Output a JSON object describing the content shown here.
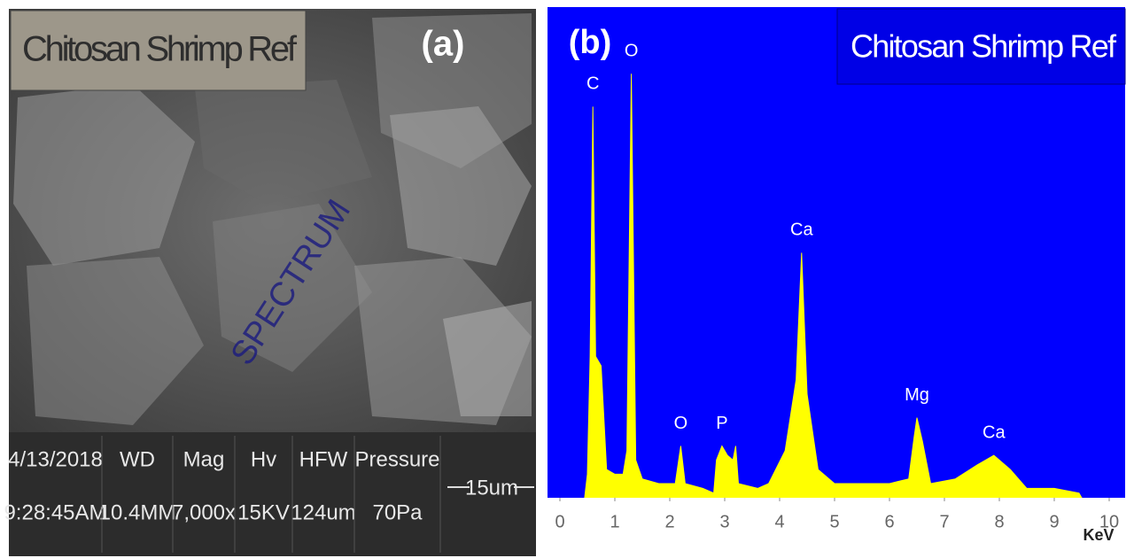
{
  "panel_a": {
    "label": "(a)",
    "title": "Chitosan Shrimp Ref",
    "watermark": "SPECTRUM",
    "info": [
      [
        "4/13/2018",
        "9:28:45AM"
      ],
      [
        "WD",
        "10.4MM"
      ],
      [
        "Mag",
        "7,000x"
      ],
      [
        "Hv",
        "15KV"
      ],
      [
        "HFW",
        "124um"
      ],
      [
        "Pressure",
        "70Pa"
      ]
    ],
    "scale_bar": "15um"
  },
  "chart_data": {
    "type": "area",
    "panel_label": "(b)",
    "title": "Chitosan Shrimp Ref",
    "xlabel": "KeV",
    "color": "#ffff00",
    "background": "#0000ff",
    "x": [
      0.45,
      0.5,
      0.55,
      0.6,
      0.65,
      0.75,
      0.85,
      1.0,
      1.15,
      1.22,
      1.3,
      1.38,
      1.5,
      1.8,
      2.1,
      2.2,
      2.28,
      2.6,
      2.8,
      2.85,
      2.95,
      3.05,
      3.15,
      3.2,
      3.25,
      3.6,
      3.8,
      4.1,
      4.3,
      4.4,
      4.5,
      4.7,
      5.0,
      5.5,
      6.0,
      6.35,
      6.45,
      6.5,
      6.6,
      6.75,
      7.2,
      7.6,
      7.9,
      8.2,
      8.5,
      9.0,
      9.45,
      9.5
    ],
    "values": [
      0,
      5,
      30,
      83,
      30,
      28,
      6,
      5,
      5,
      10,
      90,
      8,
      4,
      3,
      3,
      11,
      3,
      2,
      1,
      8,
      11,
      9,
      8,
      11,
      3,
      2,
      3,
      10,
      25,
      52,
      22,
      6,
      3,
      3,
      3,
      4,
      13,
      17,
      12,
      3,
      4,
      7,
      9,
      6,
      2,
      2,
      1,
      0
    ],
    "xlim": [
      0,
      10
    ],
    "xticks": [
      0,
      1,
      2,
      3,
      4,
      5,
      6,
      7,
      8,
      9,
      10
    ],
    "ylim": [
      0,
      100
    ],
    "annotations": [
      {
        "text": "C",
        "x": 0.6,
        "y": 83
      },
      {
        "text": "O",
        "x": 1.3,
        "y": 90
      },
      {
        "text": "O",
        "x": 2.2,
        "y": 11
      },
      {
        "text": "P",
        "x": 2.95,
        "y": 11
      },
      {
        "text": "Ca",
        "x": 4.4,
        "y": 52
      },
      {
        "text": "Mg",
        "x": 6.5,
        "y": 17
      },
      {
        "text": "Ca",
        "x": 7.9,
        "y": 9
      }
    ]
  }
}
